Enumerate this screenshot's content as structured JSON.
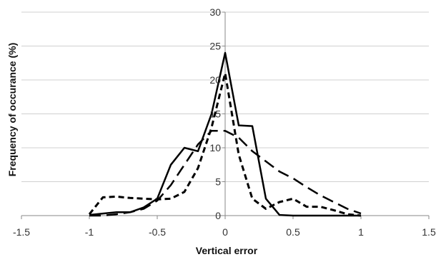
{
  "chart_data": {
    "type": "line",
    "title": "",
    "xlabel": "Vertical error",
    "ylabel": "Frequency of occurance (%)",
    "xlim": [
      -1.5,
      1.5
    ],
    "ylim": [
      0,
      30
    ],
    "xticks": [
      "-1.5",
      "-1",
      "-0.5",
      "0",
      "0.5",
      "1",
      "1.5"
    ],
    "yticks": [
      "0",
      "5",
      "10",
      "15",
      "20",
      "25",
      "30"
    ],
    "grid": "horizontal",
    "legend": "none",
    "series": [
      {
        "style": "solid",
        "color": "#000000",
        "x": [
          -1.0,
          -0.9,
          -0.8,
          -0.7,
          -0.6,
          -0.5,
          -0.4,
          -0.3,
          -0.2,
          -0.1,
          0.0,
          0.1,
          0.2,
          0.3,
          0.4,
          0.5,
          0.6,
          0.7,
          0.8,
          0.9,
          1.0
        ],
        "y": [
          0.1,
          0.3,
          0.5,
          0.5,
          1.2,
          2.5,
          7.5,
          10.0,
          9.5,
          15.0,
          24.0,
          13.3,
          13.2,
          2.5,
          0.1,
          0.0,
          0.0,
          0.0,
          0.0,
          0.0,
          0.0
        ]
      },
      {
        "style": "dashed",
        "color": "#000000",
        "x": [
          -1.0,
          -0.9,
          -0.8,
          -0.7,
          -0.6,
          -0.5,
          -0.4,
          -0.3,
          -0.2,
          -0.1,
          0.0,
          0.1,
          0.2,
          0.3,
          0.4,
          0.5,
          0.6,
          0.7,
          0.8,
          0.9,
          1.0
        ],
        "y": [
          0.2,
          2.7,
          2.8,
          2.6,
          2.5,
          2.4,
          2.5,
          3.5,
          7.0,
          13.0,
          21.0,
          9.0,
          2.5,
          1.0,
          2.0,
          2.5,
          1.3,
          1.3,
          0.8,
          0.2,
          0.0
        ]
      },
      {
        "style": "long-dashed",
        "color": "#000000",
        "x": [
          -1.0,
          -0.9,
          -0.8,
          -0.7,
          -0.6,
          -0.5,
          -0.4,
          -0.3,
          -0.2,
          -0.1,
          0.0,
          0.1,
          0.2,
          0.3,
          0.4,
          0.5,
          0.6,
          0.7,
          0.8,
          0.9,
          1.0
        ],
        "y": [
          0.0,
          0.0,
          0.2,
          0.5,
          1.0,
          2.2,
          4.5,
          7.5,
          10.5,
          12.5,
          12.5,
          11.5,
          9.5,
          8.0,
          6.5,
          5.5,
          4.2,
          3.0,
          2.0,
          1.0,
          0.3
        ]
      }
    ]
  }
}
